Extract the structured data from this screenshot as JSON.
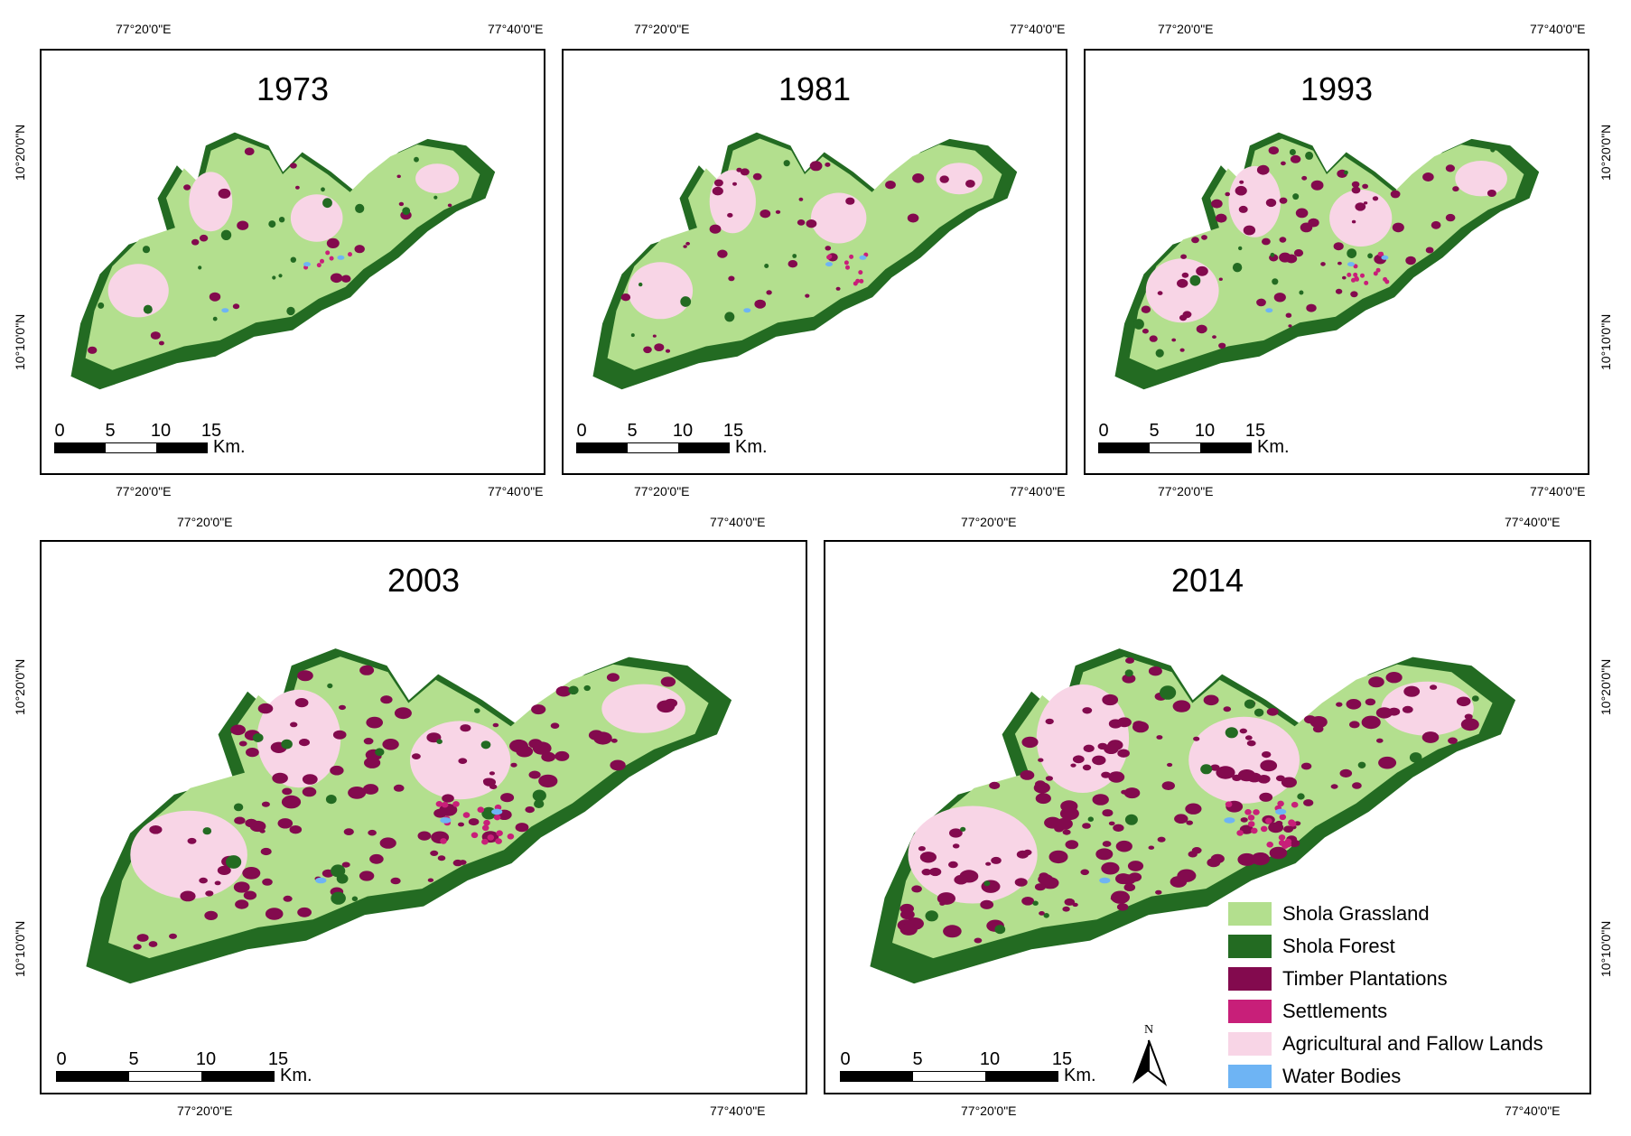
{
  "colors": {
    "shola_grassland": "#b3df8e",
    "shola_forest": "#236b22",
    "timber_plantations": "#830a4e",
    "settlements": "#c81f79",
    "agricultural_fallow": "#f8d5e6",
    "water_bodies": "#6eb4f4"
  },
  "panels": [
    {
      "year": "1973",
      "timber": 0.08,
      "agri": 0.1,
      "lat_labels": "left"
    },
    {
      "year": "1981",
      "timber": 0.16,
      "agri": 0.12,
      "lat_labels": "none"
    },
    {
      "year": "1993",
      "timber": 0.3,
      "agri": 0.16,
      "lat_labels": "right"
    },
    {
      "year": "2003",
      "timber": 0.48,
      "agri": 0.18,
      "lat_labels": "left"
    },
    {
      "year": "2014",
      "timber": 0.62,
      "agri": 0.22,
      "lat_labels": "right"
    }
  ],
  "coords": {
    "lon_west": "77°20'0\"E",
    "lon_east": "77°40'0\"E",
    "lat_north": "10°20'0\"N",
    "lat_south": "10°10'0\"N"
  },
  "scalebar": {
    "ticks": [
      "0",
      "5",
      "10",
      "15"
    ],
    "unit": "Km."
  },
  "legend": [
    {
      "label": "Shola Grassland",
      "color": "#b3df8e"
    },
    {
      "label": "Shola Forest",
      "color": "#236b22"
    },
    {
      "label": "Timber Plantations",
      "color": "#830a4e"
    },
    {
      "label": "Settlements",
      "color": "#c81f79"
    },
    {
      "label": "Agricultural and Fallow Lands",
      "color": "#f8d5e6"
    },
    {
      "label": "Water Bodies",
      "color": "#6eb4f4"
    }
  ],
  "north_arrow": {
    "label": "N"
  }
}
